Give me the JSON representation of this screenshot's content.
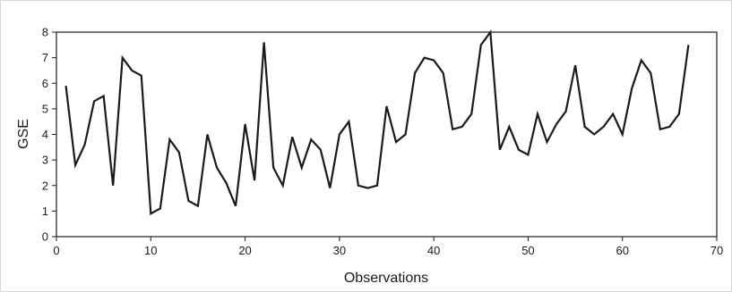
{
  "chart_data": {
    "type": "line",
    "title": "",
    "xlabel": "Observations",
    "ylabel": "GSE",
    "xlim": [
      0,
      70
    ],
    "ylim": [
      0,
      8
    ],
    "x_ticks": [
      0,
      10,
      20,
      30,
      40,
      50,
      60,
      70
    ],
    "y_ticks": [
      0,
      1,
      2,
      3,
      4,
      5,
      6,
      7,
      8
    ],
    "grid": false,
    "legend": "none",
    "colors": {
      "line": "#1a1a1a",
      "axes": "#1a1a1a"
    },
    "series": [
      {
        "x": [
          1,
          2,
          3,
          4,
          5,
          6,
          7,
          8,
          9,
          10,
          11,
          12,
          13,
          14,
          15,
          16,
          17,
          18,
          19,
          20,
          21,
          22,
          23,
          24,
          25,
          26,
          27,
          28,
          29,
          30,
          31,
          32,
          33,
          34,
          35,
          36,
          37,
          38,
          39,
          40,
          41,
          42,
          43,
          44,
          45,
          46,
          47,
          48,
          49,
          50,
          51,
          52,
          53,
          54,
          55,
          56,
          57,
          58,
          59,
          60,
          61,
          62,
          63,
          64,
          65,
          66,
          67
        ],
        "values": [
          5.9,
          2.8,
          3.6,
          5.3,
          5.5,
          2.0,
          7.0,
          6.5,
          6.3,
          0.9,
          1.1,
          3.8,
          3.3,
          1.4,
          1.2,
          4.0,
          2.7,
          2.1,
          1.2,
          4.4,
          2.2,
          7.6,
          2.7,
          2.0,
          3.9,
          2.7,
          3.8,
          3.4,
          1.9,
          4.0,
          4.5,
          2.0,
          1.9,
          2.0,
          5.1,
          3.7,
          4.0,
          6.4,
          7.0,
          6.9,
          6.4,
          4.2,
          4.3,
          4.8,
          7.5,
          8.0,
          3.4,
          4.3,
          3.4,
          3.2,
          4.8,
          3.7,
          4.4,
          4.9,
          6.7,
          4.3,
          4.0,
          4.3,
          4.8,
          4.0,
          5.8,
          6.9,
          6.4,
          4.2,
          4.3,
          4.8,
          7.5
        ]
      }
    ]
  }
}
